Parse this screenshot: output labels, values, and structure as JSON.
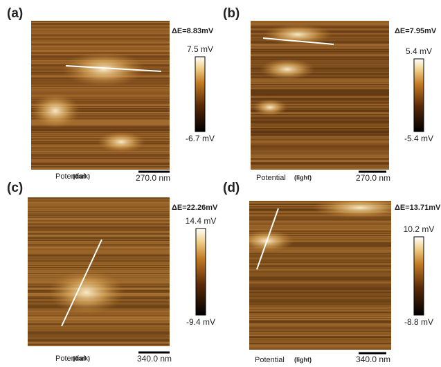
{
  "panels": [
    {
      "label": "(a)",
      "delta_e": "ΔE=8.83mV",
      "colorbar_max": "7.5 mV",
      "colorbar_min": "-6.7 mV",
      "channel": "Potential",
      "condition": "(dark)",
      "scale_bar": "270.0 nm"
    },
    {
      "label": "(b)",
      "delta_e": "ΔE=7.95mV",
      "colorbar_max": "5.4 mV",
      "colorbar_min": "-5.4 mV",
      "channel": "Potential",
      "condition": "(light)",
      "scale_bar": "270.0 nm"
    },
    {
      "label": "(c)",
      "delta_e": "ΔE=22.26mV",
      "colorbar_max": "14.4 mV",
      "colorbar_min": "-9.4 mV",
      "channel": "Potential",
      "condition": "(dark)",
      "scale_bar": "340.0 nm"
    },
    {
      "label": "(d)",
      "delta_e": "ΔE=13.71mV",
      "colorbar_max": "10.2 mV",
      "colorbar_min": "-8.8 mV",
      "channel": "Potential",
      "condition": "(light)",
      "scale_bar": "340.0 nm"
    }
  ]
}
